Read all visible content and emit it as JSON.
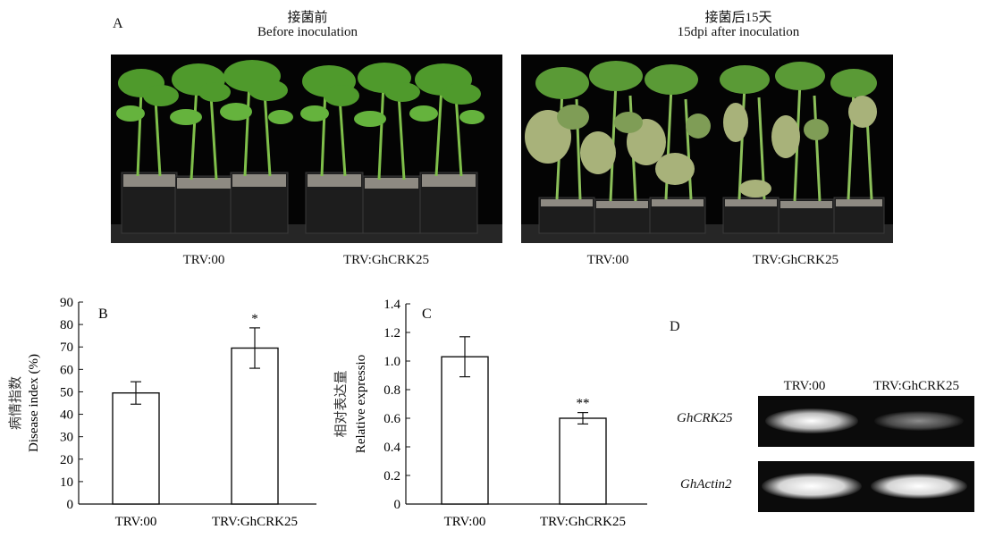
{
  "panel_a": {
    "letter": "A",
    "left": {
      "title_cn": "接菌前",
      "title_en": "Before inoculation",
      "label_ctrl": "TRV:00",
      "label_gene": "TRV:GhCRK25"
    },
    "right": {
      "title_cn": "接菌后15天",
      "title_en": "15dpi after inoculation",
      "label_ctrl": "TRV:00",
      "label_gene": "TRV:GhCRK25"
    }
  },
  "panel_d": {
    "letter": "D",
    "lane1": "TRV:00",
    "lane2": "TRV:GhCRK25",
    "gene1": "GhCRK25",
    "gene2": "GhActin2"
  },
  "chart_data": [
    {
      "type": "bar",
      "panel": "B",
      "ylabel_cn": "病情指数",
      "ylabel": "Disease index (%)",
      "categories": [
        "TRV:00",
        "TRV:GhCRK25"
      ],
      "values": [
        49.5,
        69.5
      ],
      "errors": [
        5,
        9
      ],
      "annotations": [
        "",
        "*"
      ],
      "ylim": [
        0,
        90
      ],
      "yticks": [
        0,
        10,
        20,
        30,
        40,
        50,
        60,
        70,
        80,
        90
      ]
    },
    {
      "type": "bar",
      "panel": "C",
      "ylabel_cn": "相对表达量",
      "ylabel": "Relative expressio",
      "categories": [
        "TRV:00",
        "TRV:GhCRK25"
      ],
      "values": [
        1.03,
        0.6
      ],
      "errors": [
        0.14,
        0.04
      ],
      "annotations": [
        "",
        "**"
      ],
      "ylim": [
        0,
        1.4
      ],
      "yticks": [
        0,
        0.2,
        0.4,
        0.6,
        0.8,
        1.0,
        1.2,
        1.4
      ],
      "ytick_labels": [
        "0",
        "0.2",
        "0.4",
        "0.6",
        "0.8",
        "1.0",
        "1.2",
        "1.4"
      ]
    }
  ]
}
